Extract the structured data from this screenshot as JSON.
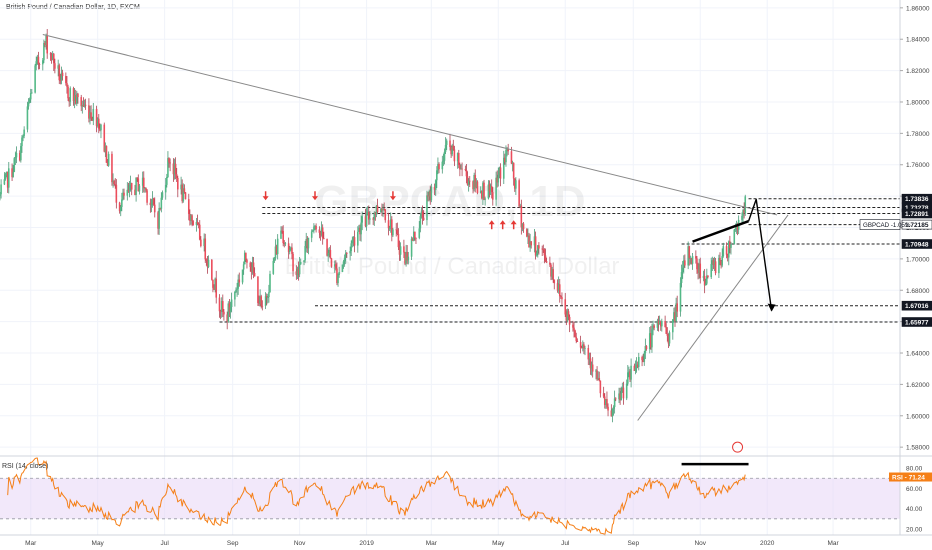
{
  "title": "British Pound / Canadian Dollar, 1D, FXCM",
  "watermark": {
    "symbol": "GBPCAD, 1D",
    "name": "British Pound / Canadian Dollar"
  },
  "colors": {
    "up": "#53b987",
    "down": "#eb4d5c",
    "upWick": "#4a9a78",
    "downWick": "#b04050",
    "rsi": "#f57f17",
    "rsiBand": "#e8d6f5",
    "accent": "#e53935"
  },
  "price_axis": {
    "ticks": [
      "1.86000",
      "1.84000",
      "1.82000",
      "1.80000",
      "1.78000",
      "1.76000",
      "1.74000",
      "1.72000",
      "1.70000",
      "1.68000",
      "1.66000",
      "1.64000",
      "1.62000",
      "1.60000",
      "1.58000"
    ]
  },
  "price_levels": [
    "1.73836",
    "1.73278",
    "1.72891",
    "1.72185",
    "1.70948",
    "1.67016",
    "1.65977"
  ],
  "current_label": "GBPCAD -1.05%",
  "rsi": {
    "label": "RSI (14, close)",
    "value_label": "RSI - 71.24",
    "ticks": [
      "80.00",
      "60.00",
      "40.00",
      "20.00"
    ]
  },
  "time_axis": {
    "labels": [
      "Mar",
      "May",
      "Jul",
      "Sep",
      "Nov",
      "2019",
      "Mar",
      "May",
      "Jul",
      "Sep",
      "Nov",
      "2020",
      "Mar"
    ]
  },
  "chart_data": {
    "type": "candlestick",
    "title": "British Pound / Canadian Dollar, 1D, FXCM",
    "ylim": [
      1.575,
      1.865
    ],
    "x_range": [
      "2018-02-01",
      "2020-05-01"
    ],
    "price_levels": [
      1.73836,
      1.73278,
      1.72891,
      1.72185,
      1.70948,
      1.67016,
      1.65977
    ],
    "close_path": [
      {
        "date": "2018-02-01",
        "close": 1.74
      },
      {
        "date": "2018-02-20",
        "close": 1.77
      },
      {
        "date": "2018-03-05",
        "close": 1.82
      },
      {
        "date": "2018-03-15",
        "close": 1.838
      },
      {
        "date": "2018-04-01",
        "close": 1.808
      },
      {
        "date": "2018-05-01",
        "close": 1.79
      },
      {
        "date": "2018-05-20",
        "close": 1.735
      },
      {
        "date": "2018-06-10",
        "close": 1.75
      },
      {
        "date": "2018-06-25",
        "close": 1.725
      },
      {
        "date": "2018-07-05",
        "close": 1.765
      },
      {
        "date": "2018-07-20",
        "close": 1.735
      },
      {
        "date": "2018-08-05",
        "close": 1.71
      },
      {
        "date": "2018-08-25",
        "close": 1.66
      },
      {
        "date": "2018-09-15",
        "close": 1.705
      },
      {
        "date": "2018-09-28",
        "close": 1.665
      },
      {
        "date": "2018-10-15",
        "close": 1.72
      },
      {
        "date": "2018-10-30",
        "close": 1.69
      },
      {
        "date": "2018-11-15",
        "close": 1.725
      },
      {
        "date": "2018-12-05",
        "close": 1.69
      },
      {
        "date": "2018-12-25",
        "close": 1.72
      },
      {
        "date": "2019-01-15",
        "close": 1.735
      },
      {
        "date": "2019-02-05",
        "close": 1.7
      },
      {
        "date": "2019-02-25",
        "close": 1.735
      },
      {
        "date": "2019-03-15",
        "close": 1.772
      },
      {
        "date": "2019-04-05",
        "close": 1.75
      },
      {
        "date": "2019-04-25",
        "close": 1.74
      },
      {
        "date": "2019-05-10",
        "close": 1.77
      },
      {
        "date": "2019-05-25",
        "close": 1.715
      },
      {
        "date": "2019-06-15",
        "close": 1.7
      },
      {
        "date": "2019-07-05",
        "close": 1.66
      },
      {
        "date": "2019-07-25",
        "close": 1.635
      },
      {
        "date": "2019-08-10",
        "close": 1.598
      },
      {
        "date": "2019-08-25",
        "close": 1.62
      },
      {
        "date": "2019-09-10",
        "close": 1.64
      },
      {
        "date": "2019-09-25",
        "close": 1.66
      },
      {
        "date": "2019-10-05",
        "close": 1.65
      },
      {
        "date": "2019-10-20",
        "close": 1.705
      },
      {
        "date": "2019-11-05",
        "close": 1.688
      },
      {
        "date": "2019-11-25",
        "close": 1.705
      },
      {
        "date": "2019-12-12",
        "close": 1.735
      }
    ],
    "rsi": {
      "period": 14,
      "last": 71.24,
      "levels": [
        70,
        30
      ],
      "ylim": [
        14,
        90
      ]
    },
    "trendlines": [
      {
        "from": {
          "date": "2018-03-12",
          "price": 1.843
        },
        "to": {
          "date": "2020-01-10",
          "price": 1.728
        }
      },
      {
        "from": {
          "date": "2019-09-05",
          "price": 1.597
        },
        "to": {
          "date": "2020-01-20",
          "price": 1.728
        }
      }
    ],
    "projection": [
      {
        "date": "2019-10-25",
        "price": 1.711
      },
      {
        "date": "2019-12-15",
        "price": 1.724
      },
      {
        "date": "2019-12-22",
        "price": 1.738
      },
      {
        "date": "2020-01-05",
        "price": 1.667
      }
    ],
    "arrows_down": [
      "2018-10-01",
      "2018-11-15",
      "2019-01-25"
    ],
    "arrows_up": [
      "2019-04-25",
      "2019-05-05",
      "2019-05-15"
    ],
    "rsi_segment": {
      "from": "2019-10-15",
      "to": "2019-12-15",
      "rsi": 84
    }
  }
}
